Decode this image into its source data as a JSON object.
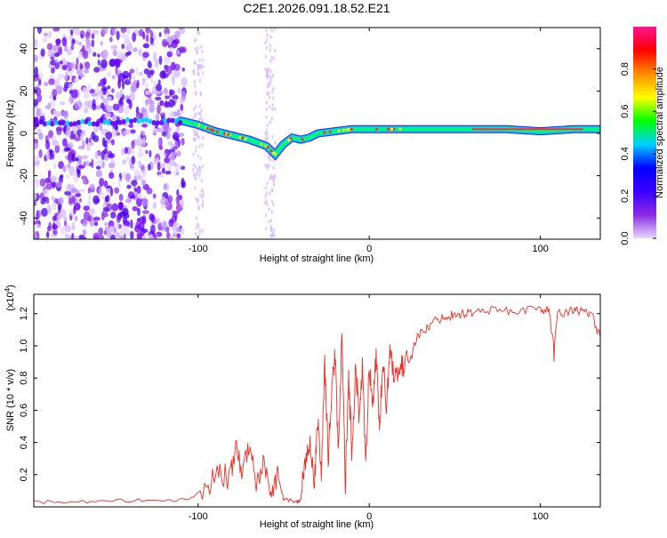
{
  "page": {
    "title": "C2E1.2026.091.18.52.E21"
  },
  "chart_data": [
    {
      "type": "heatmap",
      "name": "spectrogram",
      "title": "C2E1.2026.091.18.52.E21",
      "xlabel": "Height of straight line (km)",
      "ylabel": "Frequency (Hz)",
      "xlim": [
        -196,
        135
      ],
      "ylim": [
        -50,
        50
      ],
      "xticks": [
        -100,
        0,
        100
      ],
      "yticks": [
        -40,
        -20,
        0,
        20,
        40
      ],
      "grid": false,
      "colorbar": {
        "label": "Normalized spectral amplitude",
        "range": [
          0.0,
          1.0
        ],
        "ticks": [
          0.0,
          0.2,
          0.4,
          0.6,
          0.8
        ],
        "colors": [
          "#e8d8ff",
          "#8a2be2",
          "#3a00ff",
          "#0000ff",
          "#00d0ff",
          "#00ff00",
          "#ffff00",
          "#ff8c00",
          "#ff0000",
          "#ff1493"
        ]
      },
      "ridge": {
        "x": [
          -196,
          -110,
          -100,
          -90,
          -80,
          -70,
          -60,
          -55,
          -50,
          -45,
          -40,
          -35,
          -30,
          -20,
          -10,
          0,
          10,
          20,
          40,
          60,
          80,
          100,
          120,
          135
        ],
        "y": [
          5,
          6,
          4,
          1,
          -1,
          -3,
          -6,
          -10,
          -5,
          -2,
          -3,
          -2,
          0,
          1,
          2,
          2,
          2,
          2,
          2,
          2,
          2,
          1,
          2,
          2
        ]
      },
      "noise_region_x": [
        -196,
        -108
      ]
    },
    {
      "type": "line",
      "name": "snr",
      "xlabel": "Height of straight line (km)",
      "ylabel": "SNR (10 * v/v)",
      "multiplier_label": "(x10",
      "multiplier_exp": "4",
      "xlim": [
        -196,
        135
      ],
      "ylim": [
        0.0,
        1.32
      ],
      "xticks": [
        -100,
        0,
        100
      ],
      "yticks": [
        0.2,
        0.4,
        0.6,
        0.8,
        1.0,
        1.2
      ],
      "grid": false,
      "color": "#e8302a",
      "series": [
        {
          "name": "SNR",
          "x": [
            -196,
            -180,
            -160,
            -140,
            -120,
            -105,
            -95,
            -88,
            -82,
            -78,
            -74,
            -70,
            -66,
            -62,
            -58,
            -54,
            -50,
            -46,
            -42,
            -40,
            -38,
            -35,
            -32,
            -30,
            -28,
            -26,
            -24,
            -22,
            -20,
            -18,
            -16,
            -14,
            -12,
            -10,
            -8,
            -6,
            -4,
            -2,
            0,
            2,
            4,
            6,
            8,
            10,
            12,
            15,
            18,
            20,
            25,
            30,
            35,
            40,
            45,
            50,
            55,
            60,
            70,
            80,
            90,
            100,
            105,
            108,
            110,
            115,
            120,
            125,
            130,
            135
          ],
          "y": [
            0.03,
            0.03,
            0.03,
            0.04,
            0.04,
            0.05,
            0.12,
            0.22,
            0.18,
            0.35,
            0.2,
            0.42,
            0.1,
            0.3,
            0.08,
            0.2,
            0.05,
            0.04,
            0.03,
            0.04,
            0.25,
            0.4,
            0.15,
            0.55,
            0.2,
            0.9,
            0.3,
            0.7,
            0.95,
            0.35,
            1.05,
            0.15,
            0.8,
            0.3,
            0.9,
            0.55,
            0.85,
            0.25,
            0.9,
            0.6,
            0.95,
            0.5,
            0.88,
            0.65,
            0.95,
            0.82,
            0.88,
            0.85,
            1.0,
            1.08,
            1.12,
            1.17,
            1.18,
            1.2,
            1.2,
            1.21,
            1.22,
            1.22,
            1.22,
            1.23,
            1.22,
            0.98,
            1.22,
            1.2,
            1.23,
            1.21,
            1.19,
            1.05
          ]
        }
      ]
    }
  ]
}
